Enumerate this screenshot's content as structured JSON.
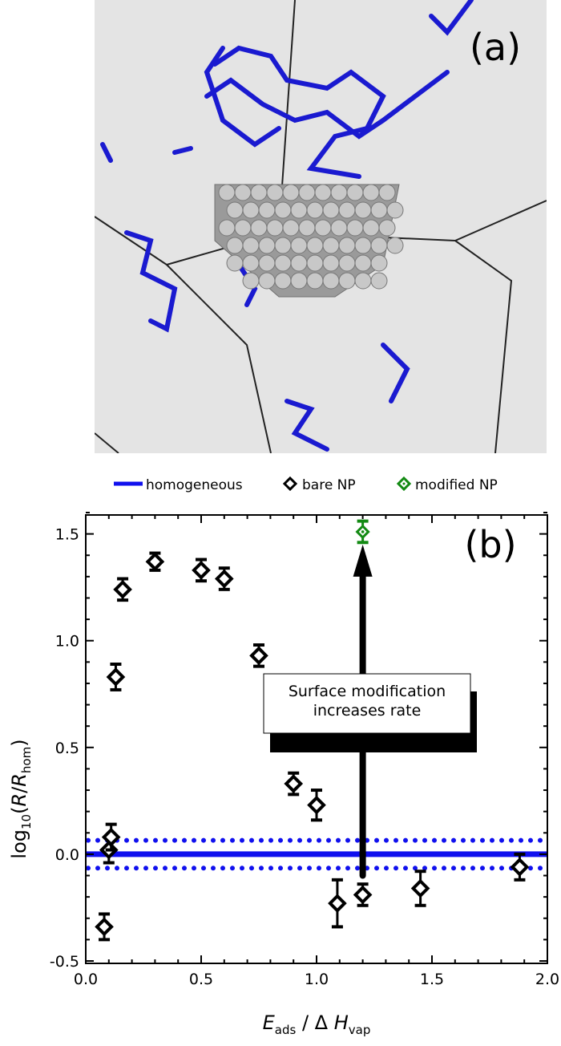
{
  "panel_a": {
    "label": "(a)"
  },
  "colors": {
    "homogeneous": "#1010ee",
    "bare": "#000000",
    "modified": "#138a13",
    "molecule": "#1a1ad0",
    "background": "#e4e4e4"
  },
  "legend": {
    "position": "top",
    "items": [
      {
        "label": "homogeneous",
        "marker": "line",
        "color": "#1010ee"
      },
      {
        "label": "bare NP",
        "marker": "diamond",
        "color": "#000000"
      },
      {
        "label": "modified NP",
        "marker": "diamond-dot",
        "color": "#138a13"
      }
    ]
  },
  "chart_data": {
    "type": "scatter",
    "panel_label": "(b)",
    "xlabel": "E_ads / Δ H_vap",
    "ylabel": "log10(R/R_hom)",
    "xlim": [
      0.0,
      2.0
    ],
    "ylim": [
      -0.5,
      1.6
    ],
    "xticks": [
      "0.0",
      "0.5",
      "1.0",
      "1.5",
      "2.0"
    ],
    "yticks": [
      "-0.5",
      "0.0",
      "0.5",
      "1.0",
      "1.5"
    ],
    "grid": false,
    "reference_lines": {
      "homogeneous": 0.0,
      "uncertainty_band": [
        -0.065,
        0.065
      ]
    },
    "series": [
      {
        "name": "bare NP",
        "points": [
          {
            "x": 0.08,
            "y": -0.34,
            "err": 0.06
          },
          {
            "x": 0.1,
            "y": 0.02,
            "err": 0.06
          },
          {
            "x": 0.11,
            "y": 0.08,
            "err": 0.06
          },
          {
            "x": 0.13,
            "y": 0.83,
            "err": 0.06
          },
          {
            "x": 0.16,
            "y": 1.24,
            "err": 0.05
          },
          {
            "x": 0.3,
            "y": 1.37,
            "err": 0.04
          },
          {
            "x": 0.5,
            "y": 1.33,
            "err": 0.05
          },
          {
            "x": 0.6,
            "y": 1.29,
            "err": 0.05
          },
          {
            "x": 0.75,
            "y": 0.93,
            "err": 0.05
          },
          {
            "x": 0.9,
            "y": 0.33,
            "err": 0.05
          },
          {
            "x": 1.0,
            "y": 0.23,
            "err": 0.07
          },
          {
            "x": 1.09,
            "y": -0.23,
            "err": 0.11
          },
          {
            "x": 1.2,
            "y": -0.19,
            "err": 0.05
          },
          {
            "x": 1.45,
            "y": -0.16,
            "err": 0.08
          },
          {
            "x": 1.88,
            "y": -0.06,
            "err": 0.06
          }
        ]
      },
      {
        "name": "modified NP",
        "points": [
          {
            "x": 1.2,
            "y": 1.51,
            "err": 0.05
          }
        ]
      }
    ],
    "annotation": {
      "line1": "Surface modification",
      "line2": "increases rate",
      "arrow_x": 1.2,
      "arrow_from_y": -0.1,
      "arrow_to_y": 1.45
    }
  }
}
